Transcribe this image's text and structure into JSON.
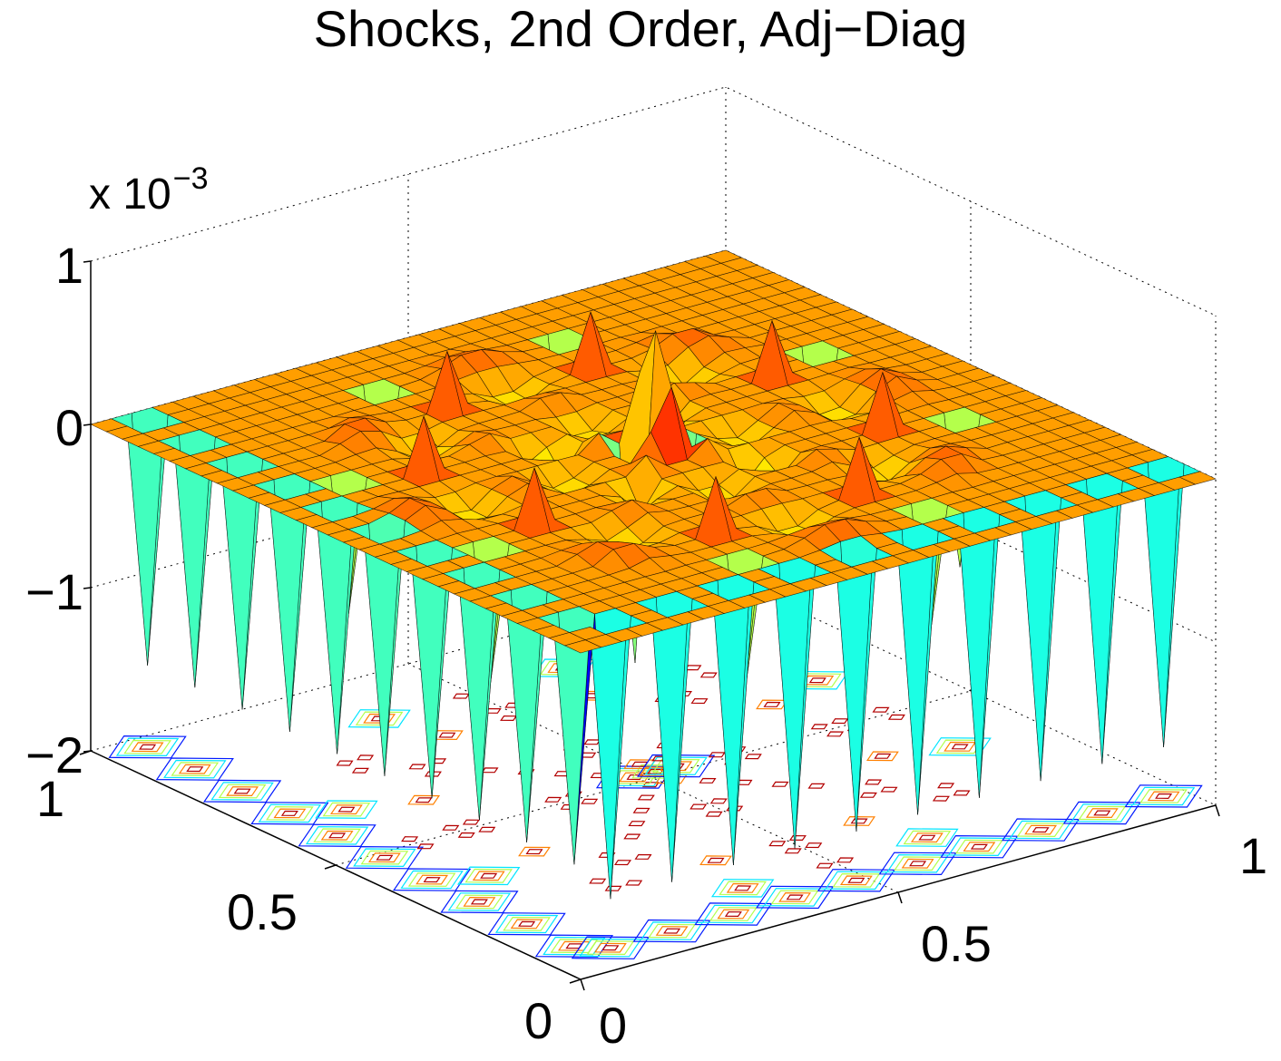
{
  "chart_data": {
    "type": "surface",
    "title": "Shocks, 2nd Order, Adj−Diag",
    "zlim": [
      -0.002,
      0.001
    ],
    "z_multiplier": "x 10",
    "z_multiplier_exp": "−3",
    "x_ticks": [
      "0",
      "0.5",
      "1"
    ],
    "y_ticks": [
      "0",
      "0.5",
      "1"
    ],
    "z_ticks": [
      "−2",
      "−1",
      "0",
      "1"
    ],
    "xlim": [
      0,
      1
    ],
    "ylim": [
      0,
      1
    ],
    "grid": true,
    "colormap": "jet",
    "projected_contours": true,
    "grid_resolution": 32,
    "features": {
      "base_level": 0,
      "radial_arms": 8,
      "central_spike_peak": 0.0007,
      "edge_spike_min": -0.0017,
      "ring_spike_min": -0.0015
    }
  }
}
